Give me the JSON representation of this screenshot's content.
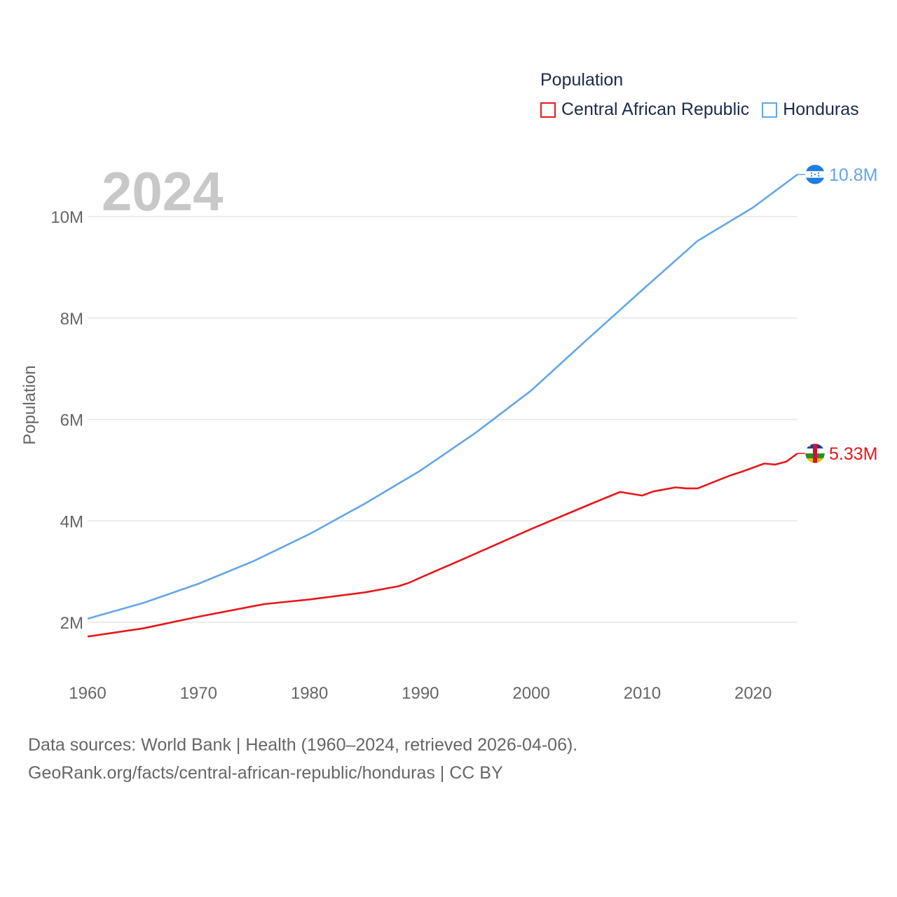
{
  "legend": {
    "title": "Population",
    "items": [
      {
        "label": "Central African Republic",
        "color": "#e8161b"
      },
      {
        "label": "Honduras",
        "color": "#63a6e7"
      }
    ]
  },
  "year_badge": "2024",
  "footer": {
    "line1": "Data sources: World Bank | Health (1960–2024, retrieved 2026-04-06).",
    "line2": "GeoRank.org/facts/central-african-republic/honduras | CC BY"
  },
  "chart_data": {
    "type": "line",
    "title": "Population",
    "xlabel": "",
    "ylabel": "Population",
    "xlim": [
      1960,
      2024
    ],
    "ylim": [
      1100000,
      11400000
    ],
    "x_ticks": [
      {
        "value": 1960,
        "label": "1960"
      },
      {
        "value": 1970,
        "label": "1970"
      },
      {
        "value": 1980,
        "label": "1980"
      },
      {
        "value": 1990,
        "label": "1990"
      },
      {
        "value": 2000,
        "label": "2000"
      },
      {
        "value": 2010,
        "label": "2010"
      },
      {
        "value": 2020,
        "label": "2020"
      }
    ],
    "y_ticks": [
      {
        "value": 2000000,
        "label": "2M"
      },
      {
        "value": 4000000,
        "label": "4M"
      },
      {
        "value": 6000000,
        "label": "6M"
      },
      {
        "value": 8000000,
        "label": "8M"
      },
      {
        "value": 10000000,
        "label": "10M"
      }
    ],
    "grid": true,
    "series": [
      {
        "name": "Honduras",
        "color": "#63a6e7",
        "end_label": "10.8M",
        "icon": "honduras-flag-icon",
        "x": [
          1960,
          1965,
          1970,
          1975,
          1980,
          1985,
          1990,
          1995,
          2000,
          2005,
          2010,
          2015,
          2020,
          2024
        ],
        "values": [
          2070000,
          2380000,
          2760000,
          3210000,
          3740000,
          4340000,
          4990000,
          5740000,
          6570000,
          7570000,
          8550000,
          9520000,
          10180000,
          10830000
        ]
      },
      {
        "name": "Central African Republic",
        "color": "#e8161b",
        "end_label": "5.33M",
        "icon": "central-african-republic-flag-icon",
        "x": [
          1960,
          1965,
          1970,
          1975,
          1976,
          1980,
          1985,
          1988,
          1989,
          1990,
          1994,
          2000,
          2005,
          2008,
          2010,
          2011,
          2013,
          2014,
          2015,
          2018,
          2019,
          2021,
          2022,
          2023,
          2024
        ],
        "values": [
          1720000,
          1880000,
          2110000,
          2320000,
          2360000,
          2450000,
          2590000,
          2710000,
          2780000,
          2880000,
          3260000,
          3840000,
          4300000,
          4570000,
          4500000,
          4580000,
          4660000,
          4640000,
          4640000,
          4900000,
          4970000,
          5130000,
          5110000,
          5170000,
          5330000
        ]
      }
    ]
  }
}
